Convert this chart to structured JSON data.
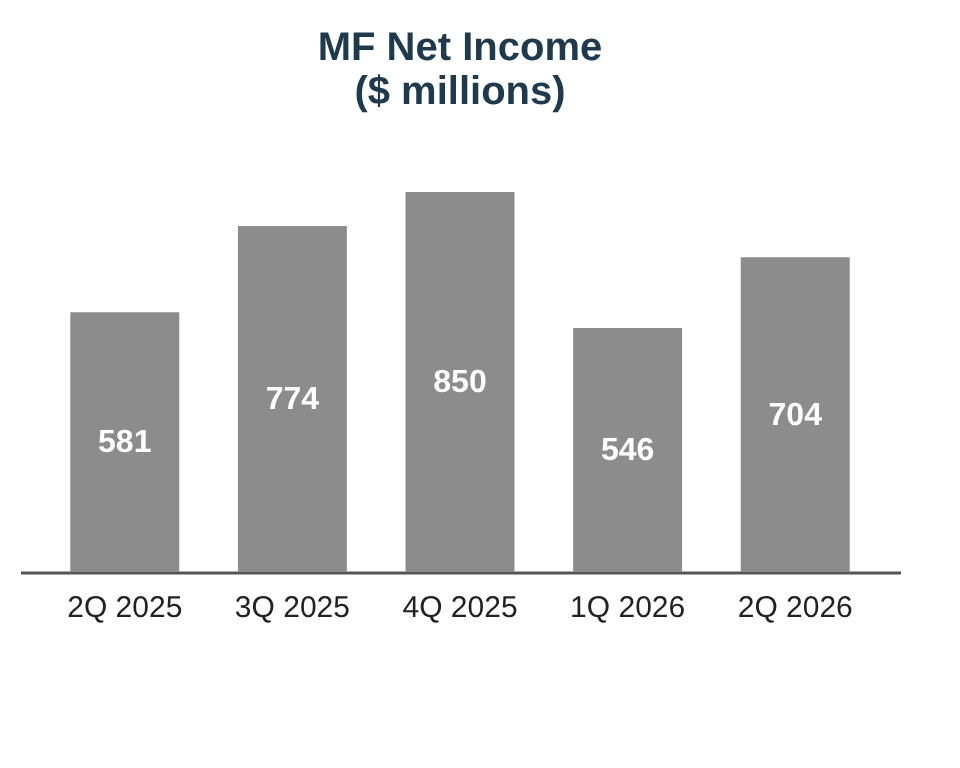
{
  "chart_data": {
    "type": "bar",
    "title": "MF Net Income\n($ millions)",
    "categories": [
      "2Q 2025",
      "3Q 2025",
      "4Q 2025",
      "1Q 2026",
      "2Q 2026"
    ],
    "values": [
      581,
      774,
      850,
      546,
      704
    ],
    "color": "#8c8c8c",
    "data_labels": true
  }
}
